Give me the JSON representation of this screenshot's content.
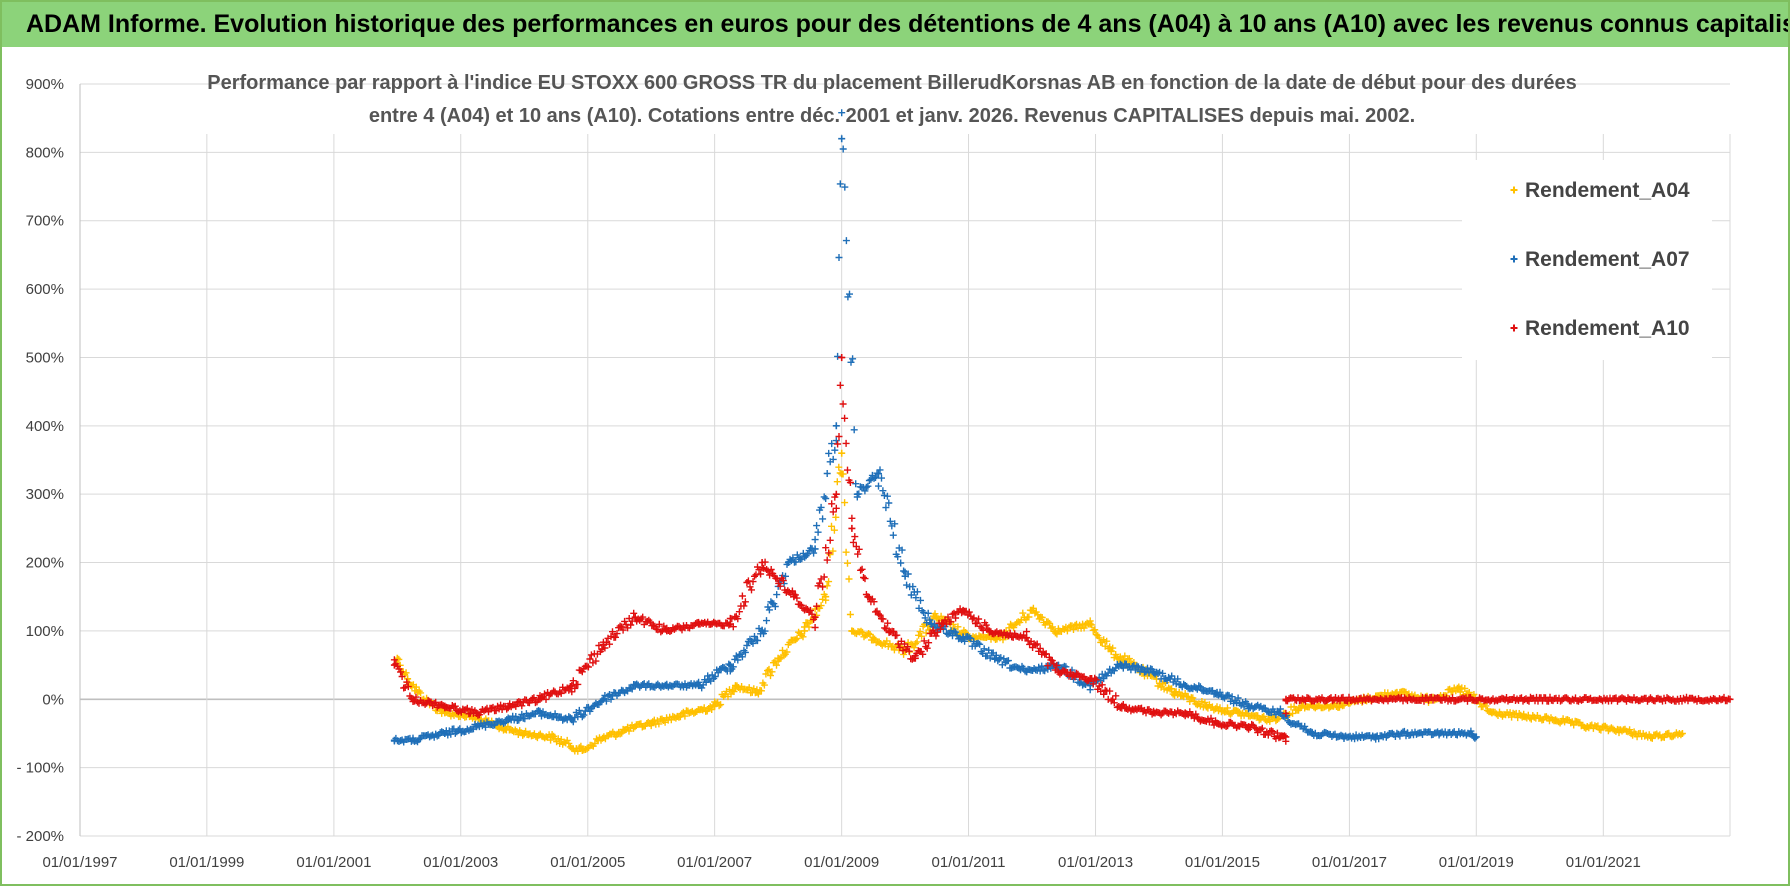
{
  "banner": {
    "title": "ADAM Informe. Evolution historique des performances en euros pour des détentions de 4 ans (A04) à 10 ans (A10) avec les revenus connus capitalisés"
  },
  "chart_data": {
    "type": "scatter",
    "title_line1": "Performance par rapport à l'indice EU STOXX 600 GROSS TR  du placement BillerudKorsnas AB en fonction de la date de début pour des durées",
    "title_line2": "entre 4 (A04) et 10 ans (A10). Cotations entre déc. 2001 et janv. 2026. Revenus CAPITALISES depuis mai. 2002.",
    "xlabel": "",
    "ylabel": "",
    "x_range": [
      "1997-01-01",
      "2022-12-31"
    ],
    "ylim": [
      -200,
      900
    ],
    "y_ticks": [
      -200,
      -100,
      0,
      100,
      200,
      300,
      400,
      500,
      600,
      700,
      800,
      900
    ],
    "y_tick_labels": [
      "- 200%",
      "- 100%",
      "0%",
      "100%",
      "200%",
      "300%",
      "400%",
      "500%",
      "600%",
      "700%",
      "800%",
      "900%"
    ],
    "x_ticks": [
      "1997-01-01",
      "1999-01-01",
      "2001-01-01",
      "2003-01-01",
      "2005-01-01",
      "2007-01-01",
      "2009-01-01",
      "2011-01-01",
      "2013-01-01",
      "2015-01-01",
      "2017-01-01",
      "2019-01-01",
      "2021-01-01"
    ],
    "x_tick_labels": [
      "01/01/1997",
      "01/01/1999",
      "01/01/2001",
      "01/01/2003",
      "01/01/2005",
      "01/01/2007",
      "01/01/2009",
      "01/01/2011",
      "01/01/2013",
      "01/01/2015",
      "01/01/2017",
      "01/01/2019",
      "01/01/2021"
    ],
    "grid": true,
    "legend_position": "top-right",
    "marker": "+",
    "series": [
      {
        "name": "Rendement_A04",
        "color": "#ffc000",
        "points": [
          [
            "2002-01-01",
            60
          ],
          [
            "2002-03-01",
            30
          ],
          [
            "2002-06-01",
            0
          ],
          [
            "2002-10-01",
            -20
          ],
          [
            "2003-03-01",
            -25
          ],
          [
            "2003-08-01",
            -40
          ],
          [
            "2004-01-01",
            -50
          ],
          [
            "2004-06-01",
            -55
          ],
          [
            "2004-12-01",
            -75
          ],
          [
            "2005-03-01",
            -60
          ],
          [
            "2005-08-01",
            -45
          ],
          [
            "2006-01-01",
            -35
          ],
          [
            "2006-06-01",
            -25
          ],
          [
            "2007-01-01",
            -10
          ],
          [
            "2007-05-01",
            20
          ],
          [
            "2007-09-01",
            10
          ],
          [
            "2008-01-01",
            60
          ],
          [
            "2008-06-01",
            100
          ],
          [
            "2008-10-01",
            150
          ],
          [
            "2009-01-01",
            360
          ],
          [
            "2009-03-01",
            100
          ],
          [
            "2009-07-01",
            90
          ],
          [
            "2010-01-01",
            70
          ],
          [
            "2010-07-01",
            120
          ],
          [
            "2011-01-01",
            90
          ],
          [
            "2011-07-01",
            90
          ],
          [
            "2012-01-01",
            130
          ],
          [
            "2012-06-01",
            100
          ],
          [
            "2012-12-01",
            110
          ],
          [
            "2013-04-01",
            70
          ],
          [
            "2013-10-01",
            40
          ],
          [
            "2014-04-01",
            10
          ],
          [
            "2014-10-01",
            -10
          ],
          [
            "2015-04-01",
            -20
          ],
          [
            "2015-10-01",
            -30
          ],
          [
            "2016-04-01",
            -10
          ],
          [
            "2016-10-01",
            -10
          ],
          [
            "2017-04-01",
            0
          ],
          [
            "2017-10-01",
            10
          ],
          [
            "2018-04-01",
            0
          ],
          [
            "2018-10-01",
            15
          ],
          [
            "2019-04-01",
            -20
          ],
          [
            "2019-10-01",
            -25
          ],
          [
            "2020-04-01",
            -30
          ],
          [
            "2020-10-01",
            -40
          ],
          [
            "2021-04-01",
            -45
          ],
          [
            "2021-10-01",
            -55
          ],
          [
            "2022-04-01",
            -50
          ]
        ]
      },
      {
        "name": "Rendement_A07",
        "color": "#1f6fb8",
        "points": [
          [
            "2001-12-15",
            -60
          ],
          [
            "2002-04-01",
            -60
          ],
          [
            "2002-10-01",
            -50
          ],
          [
            "2003-04-01",
            -40
          ],
          [
            "2003-10-01",
            -30
          ],
          [
            "2004-04-01",
            -20
          ],
          [
            "2004-10-01",
            -30
          ],
          [
            "2005-04-01",
            0
          ],
          [
            "2005-10-01",
            20
          ],
          [
            "2006-04-01",
            20
          ],
          [
            "2006-10-01",
            20
          ],
          [
            "2007-04-01",
            50
          ],
          [
            "2007-10-01",
            100
          ],
          [
            "2008-03-01",
            200
          ],
          [
            "2008-08-01",
            220
          ],
          [
            "2008-12-01",
            400
          ],
          [
            "2009-01-01",
            820
          ],
          [
            "2009-04-01",
            300
          ],
          [
            "2009-08-01",
            330
          ],
          [
            "2010-01-01",
            180
          ],
          [
            "2010-06-01",
            110
          ],
          [
            "2010-12-01",
            90
          ],
          [
            "2011-06-01",
            60
          ],
          [
            "2011-12-01",
            40
          ],
          [
            "2012-06-01",
            50
          ],
          [
            "2012-12-01",
            20
          ],
          [
            "2013-06-01",
            50
          ],
          [
            "2013-12-01",
            40
          ],
          [
            "2014-06-01",
            20
          ],
          [
            "2014-12-01",
            10
          ],
          [
            "2015-06-01",
            -10
          ],
          [
            "2015-12-01",
            -20
          ],
          [
            "2016-06-01",
            -50
          ],
          [
            "2016-12-01",
            -55
          ],
          [
            "2017-06-01",
            -55
          ],
          [
            "2017-12-01",
            -50
          ],
          [
            "2018-06-01",
            -50
          ],
          [
            "2018-12-01",
            -50
          ],
          [
            "2019-01-01",
            -55
          ]
        ]
      },
      {
        "name": "Rendement_A10",
        "color": "#e01010",
        "points": [
          [
            "2001-12-15",
            50
          ],
          [
            "2002-04-01",
            0
          ],
          [
            "2002-10-01",
            -10
          ],
          [
            "2003-04-01",
            -20
          ],
          [
            "2003-10-01",
            -10
          ],
          [
            "2004-04-01",
            0
          ],
          [
            "2004-10-01",
            20
          ],
          [
            "2005-04-01",
            80
          ],
          [
            "2005-10-01",
            120
          ],
          [
            "2006-04-01",
            100
          ],
          [
            "2006-10-01",
            110
          ],
          [
            "2007-04-01",
            110
          ],
          [
            "2007-10-01",
            200
          ],
          [
            "2008-04-01",
            150
          ],
          [
            "2008-08-01",
            120
          ],
          [
            "2008-12-01",
            300
          ],
          [
            "2009-01-01",
            500
          ],
          [
            "2009-03-01",
            250
          ],
          [
            "2009-06-01",
            150
          ],
          [
            "2009-10-01",
            100
          ],
          [
            "2010-03-01",
            60
          ],
          [
            "2010-08-01",
            110
          ],
          [
            "2010-12-01",
            130
          ],
          [
            "2011-05-01",
            100
          ],
          [
            "2011-12-01",
            90
          ],
          [
            "2012-06-01",
            40
          ],
          [
            "2012-12-01",
            30
          ],
          [
            "2013-06-01",
            -10
          ],
          [
            "2013-12-01",
            -20
          ],
          [
            "2014-06-01",
            -20
          ],
          [
            "2014-12-01",
            -35
          ],
          [
            "2015-06-01",
            -40
          ],
          [
            "2015-12-01",
            -55
          ],
          [
            "2016-01-01",
            -55
          ],
          [
            "2016-01-02",
            0
          ],
          [
            "2022-12-31",
            0
          ]
        ]
      }
    ]
  }
}
